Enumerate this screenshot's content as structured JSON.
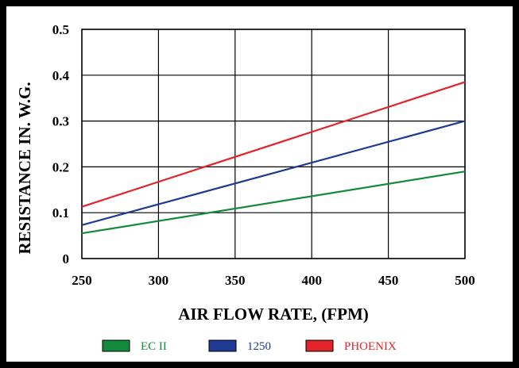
{
  "chart_data": {
    "type": "line",
    "title": "",
    "xlabel": "AIR FLOW RATE, (FPM)",
    "ylabel": "RESISTANCE IN. W.G.",
    "xlim": [
      250,
      500
    ],
    "ylim": [
      0,
      0.5
    ],
    "xticks": [
      250,
      300,
      350,
      400,
      450,
      500
    ],
    "yticks": [
      0,
      0.1,
      0.2,
      0.3,
      0.4,
      0.5
    ],
    "xtick_labels": [
      "250",
      "300",
      "350",
      "400",
      "450",
      "500"
    ],
    "ytick_labels": [
      "0",
      "0.1",
      "0.2",
      "0.3",
      "0.4",
      "0.5"
    ],
    "grid": true,
    "legend_position": "bottom",
    "series": [
      {
        "name": "EC II",
        "color": "#138a3c",
        "x": [
          250,
          500
        ],
        "y": [
          0.055,
          0.19
        ]
      },
      {
        "name": "1250",
        "color": "#1f3a93",
        "x": [
          250,
          500
        ],
        "y": [
          0.073,
          0.3
        ]
      },
      {
        "name": "PHOENIX",
        "color": "#e3232a",
        "x": [
          250,
          500
        ],
        "y": [
          0.113,
          0.385
        ]
      }
    ]
  }
}
